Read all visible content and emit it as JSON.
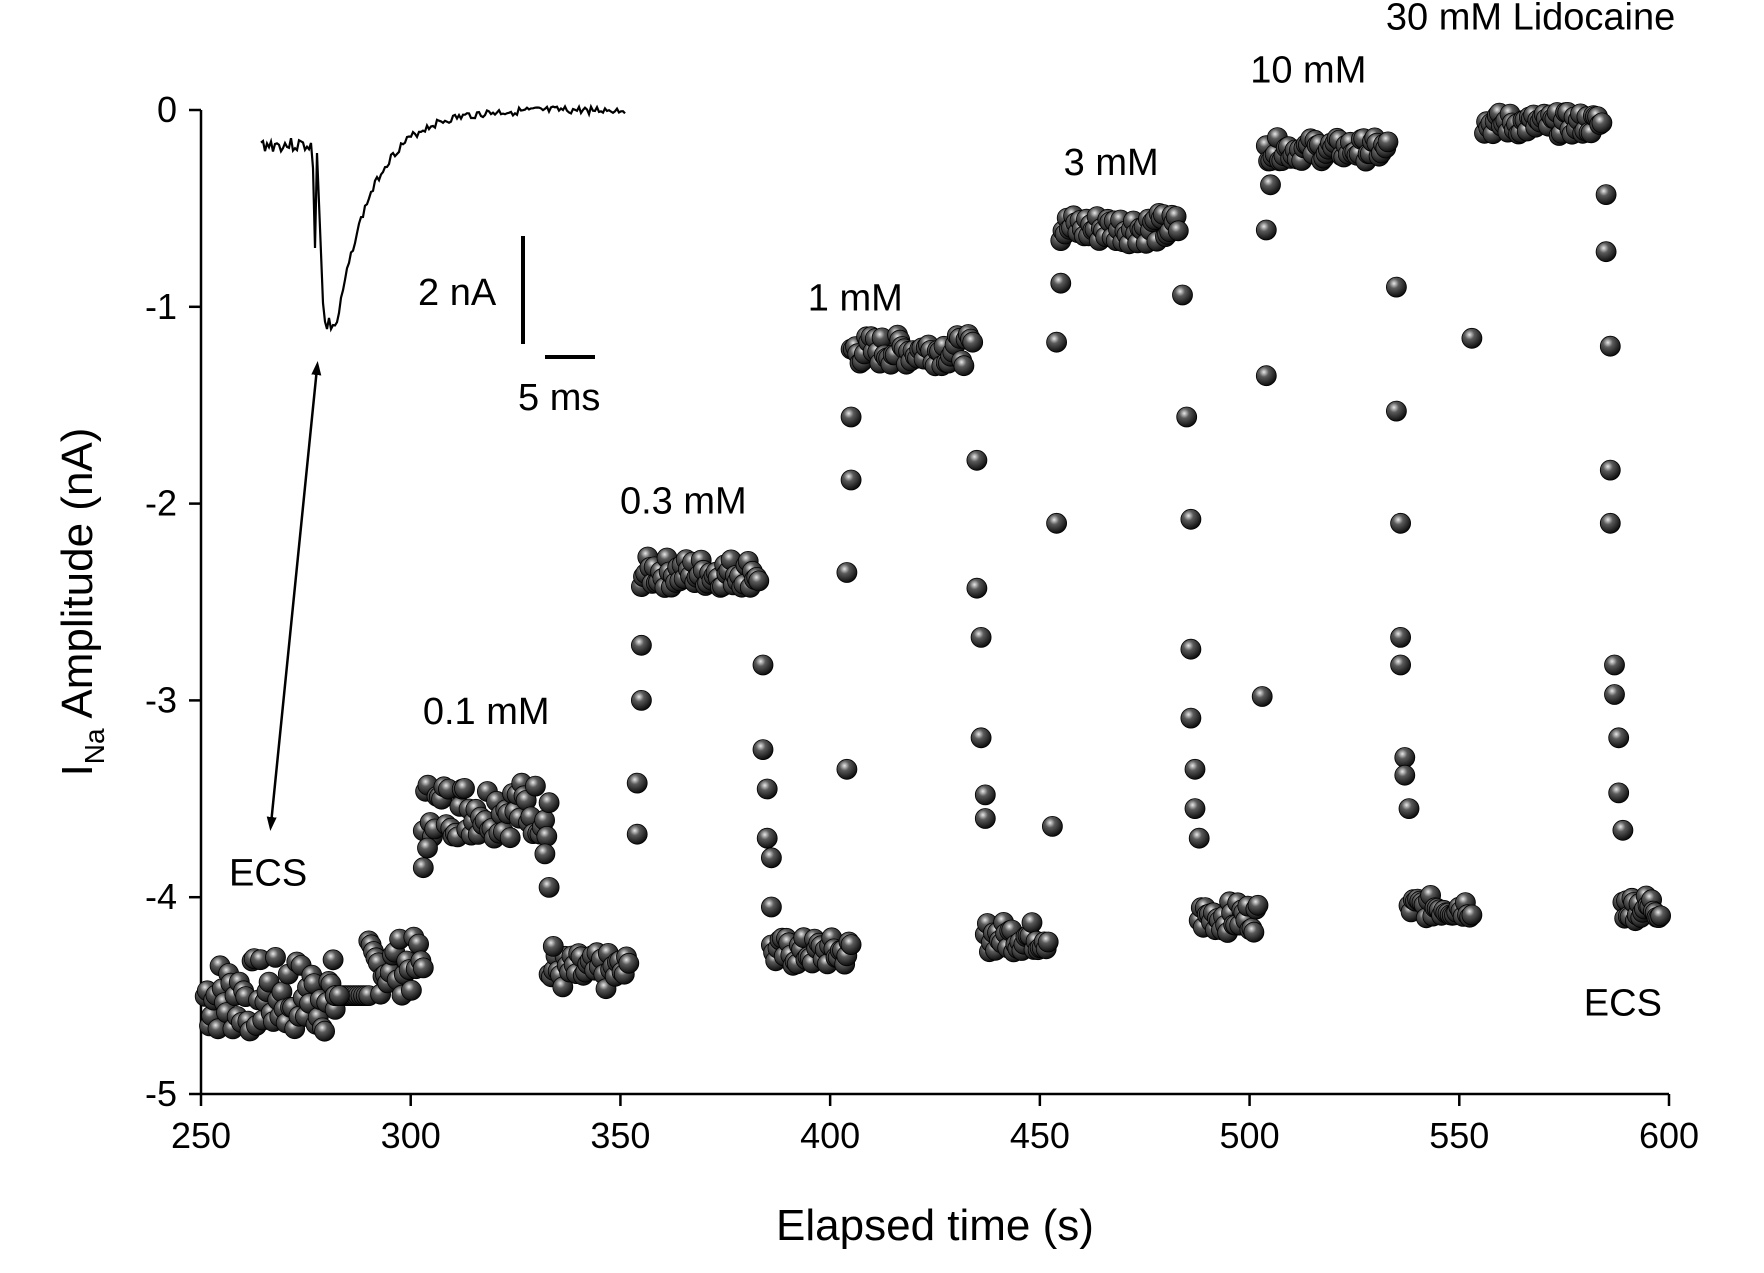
{
  "chart_data": {
    "type": "scatter",
    "xlabel": "Elapsed time (s)",
    "ylabel": {
      "main": "I",
      "sub": "Na",
      "rest": " Amplitude (nA)"
    },
    "xlim": [
      250,
      600
    ],
    "ylim": [
      -5,
      0
    ],
    "xticks": [
      250,
      300,
      350,
      400,
      450,
      500,
      550,
      600
    ],
    "yticks": [
      0,
      -1,
      -2,
      -3,
      -4,
      -5
    ],
    "xtick_labels": [
      "250",
      "300",
      "350",
      "400",
      "450",
      "500",
      "550",
      "600"
    ],
    "ytick_labels": [
      "0",
      "-1",
      "-2",
      "-3",
      "-4",
      "-5"
    ],
    "grid": false,
    "annotations": [
      {
        "text": "ECS",
        "x": 266,
        "y": -3.94
      },
      {
        "text": "0.1 mM",
        "x": 318,
        "y": -3.12
      },
      {
        "text": "0.3 mM",
        "x": 365,
        "y": -2.05
      },
      {
        "text": "1 mM",
        "x": 406,
        "y": -1.02
      },
      {
        "text": "3 mM",
        "x": 467,
        "y": -0.33
      },
      {
        "text": "10 mM",
        "x": 514,
        "y": 0.14
      },
      {
        "text": "30 mM Lidocaine",
        "x": 567,
        "y": 0.41
      },
      {
        "text": "ECS",
        "x": 589,
        "y": -4.6
      }
    ],
    "inset": {
      "description_free": true,
      "scale_bar_current": "2 nA",
      "scale_bar_time": "5 ms"
    },
    "segments": [
      {
        "t0": 251,
        "t1": 282,
        "base": -4.5,
        "amp": 0.2,
        "n": 62
      },
      {
        "t0": 282,
        "t1": 290,
        "base": -4.5,
        "amp": 0.0,
        "n": 14
      },
      {
        "t0": 290,
        "t1": 303,
        "base": -4.35,
        "amp": 0.15,
        "n": 24
      },
      {
        "t0": 303,
        "t1": 333,
        "base": -3.55,
        "amp": 0.15,
        "n": 56
      },
      {
        "t0": 333,
        "t1": 352,
        "base": -4.38,
        "amp": 0.1,
        "n": 36
      },
      {
        "t0": 355,
        "t1": 383,
        "base": -2.35,
        "amp": 0.08,
        "n": 56
      },
      {
        "t0": 386,
        "t1": 405,
        "base": -4.28,
        "amp": 0.08,
        "n": 38
      },
      {
        "t0": 405,
        "t1": 434,
        "base": -1.22,
        "amp": 0.08,
        "n": 56
      },
      {
        "t0": 437,
        "t1": 452,
        "base": -4.2,
        "amp": 0.08,
        "n": 32
      },
      {
        "t0": 455,
        "t1": 483,
        "base": -0.6,
        "amp": 0.08,
        "n": 56
      },
      {
        "t0": 488,
        "t1": 502,
        "base": -4.1,
        "amp": 0.08,
        "n": 30
      },
      {
        "t0": 504,
        "t1": 533,
        "base": -0.2,
        "amp": 0.06,
        "n": 56
      },
      {
        "t0": 538,
        "t1": 553,
        "base": -4.05,
        "amp": 0.06,
        "n": 30
      },
      {
        "t0": 556,
        "t1": 584,
        "base": -0.07,
        "amp": 0.06,
        "n": 56
      },
      {
        "t0": 589,
        "t1": 598,
        "base": -4.05,
        "amp": 0.07,
        "n": 22
      }
    ],
    "transitions": [
      {
        "x": 282,
        "y": -4.5
      },
      {
        "x": 283,
        "y": -4.5
      },
      {
        "x": 303,
        "y": -3.85
      },
      {
        "x": 304,
        "y": -3.75
      },
      {
        "x": 332,
        "y": -3.78
      },
      {
        "x": 333,
        "y": -3.95
      },
      {
        "x": 334,
        "y": -4.25
      },
      {
        "x": 354,
        "y": -3.68
      },
      {
        "x": 354,
        "y": -3.42
      },
      {
        "x": 355,
        "y": -3.0
      },
      {
        "x": 355,
        "y": -2.72
      },
      {
        "x": 384,
        "y": -2.82
      },
      {
        "x": 384,
        "y": -3.25
      },
      {
        "x": 385,
        "y": -3.45
      },
      {
        "x": 385,
        "y": -3.7
      },
      {
        "x": 386,
        "y": -3.8
      },
      {
        "x": 386,
        "y": -4.05
      },
      {
        "x": 404,
        "y": -3.35
      },
      {
        "x": 404,
        "y": -2.35
      },
      {
        "x": 405,
        "y": -1.88
      },
      {
        "x": 405,
        "y": -1.56
      },
      {
        "x": 435,
        "y": -1.78
      },
      {
        "x": 435,
        "y": -2.43
      },
      {
        "x": 436,
        "y": -2.68
      },
      {
        "x": 436,
        "y": -3.19
      },
      {
        "x": 437,
        "y": -3.48
      },
      {
        "x": 437,
        "y": -3.6
      },
      {
        "x": 453,
        "y": -3.64
      },
      {
        "x": 454,
        "y": -2.1
      },
      {
        "x": 454,
        "y": -1.18
      },
      {
        "x": 455,
        "y": -0.88
      },
      {
        "x": 484,
        "y": -0.94
      },
      {
        "x": 485,
        "y": -1.56
      },
      {
        "x": 486,
        "y": -2.08
      },
      {
        "x": 486,
        "y": -2.74
      },
      {
        "x": 486,
        "y": -3.09
      },
      {
        "x": 487,
        "y": -3.35
      },
      {
        "x": 487,
        "y": -3.55
      },
      {
        "x": 488,
        "y": -3.7
      },
      {
        "x": 503,
        "y": -2.98
      },
      {
        "x": 504,
        "y": -1.35
      },
      {
        "x": 504,
        "y": -0.61
      },
      {
        "x": 505,
        "y": -0.38
      },
      {
        "x": 535,
        "y": -0.9
      },
      {
        "x": 535,
        "y": -1.53
      },
      {
        "x": 536,
        "y": -2.1
      },
      {
        "x": 536,
        "y": -2.68
      },
      {
        "x": 536,
        "y": -2.82
      },
      {
        "x": 537,
        "y": -3.29
      },
      {
        "x": 537,
        "y": -3.38
      },
      {
        "x": 538,
        "y": -3.55
      },
      {
        "x": 553,
        "y": -1.16
      },
      {
        "x": 585,
        "y": -0.43
      },
      {
        "x": 585,
        "y": -0.72
      },
      {
        "x": 586,
        "y": -1.2
      },
      {
        "x": 586,
        "y": -1.83
      },
      {
        "x": 586,
        "y": -2.1
      },
      {
        "x": 587,
        "y": -2.82
      },
      {
        "x": 587,
        "y": -2.97
      },
      {
        "x": 588,
        "y": -3.19
      },
      {
        "x": 588,
        "y": -3.47
      },
      {
        "x": 589,
        "y": -3.66
      }
    ]
  }
}
